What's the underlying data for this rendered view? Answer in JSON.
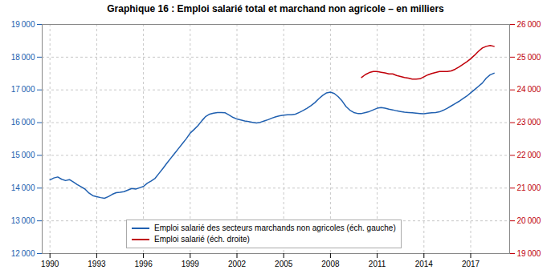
{
  "chart_data": {
    "type": "line",
    "title": "Graphique 16 : Emploi salarié total et marchand non agricole – en milliers",
    "xlim": [
      1989.5,
      2019.5
    ],
    "xticks": [
      1990,
      1993,
      1996,
      1999,
      2002,
      2005,
      2008,
      2011,
      2014,
      2017
    ],
    "ylim": [
      12000,
      19000
    ],
    "yticks": [
      {
        "value": 12000,
        "label": "12 000"
      },
      {
        "value": 13000,
        "label": "13 000"
      },
      {
        "value": 14000,
        "label": "14 000"
      },
      {
        "value": 15000,
        "label": "15 000"
      },
      {
        "value": 16000,
        "label": "16 000"
      },
      {
        "value": 17000,
        "label": "17 000"
      },
      {
        "value": 18000,
        "label": "18 000"
      },
      {
        "value": 19000,
        "label": "19 000"
      }
    ],
    "y2lim": [
      19000,
      26000
    ],
    "y2ticks": [
      {
        "value": 19000,
        "label": "19 000"
      },
      {
        "value": 20000,
        "label": "20 000"
      },
      {
        "value": 21000,
        "label": "21 000"
      },
      {
        "value": 22000,
        "label": "22 000"
      },
      {
        "value": 23000,
        "label": "23 000"
      },
      {
        "value": 24000,
        "label": "24 000"
      },
      {
        "value": 25000,
        "label": "25 000"
      },
      {
        "value": 26000,
        "label": "26 000"
      }
    ],
    "grid": true,
    "legend": "lower left",
    "series": [
      {
        "name": "Emploi salarié des secteurs marchands non agricoles (éch. gauche)",
        "color": "#2060b0",
        "axis": "y",
        "x": [
          1990.0,
          1990.25,
          1990.5,
          1990.75,
          1991.0,
          1991.25,
          1991.5,
          1991.75,
          1992.0,
          1992.25,
          1992.5,
          1992.75,
          1993.0,
          1993.25,
          1993.5,
          1993.75,
          1994.0,
          1994.25,
          1994.5,
          1994.75,
          1995.0,
          1995.25,
          1995.5,
          1995.75,
          1996.0,
          1996.25,
          1996.5,
          1996.75,
          1997.0,
          1997.25,
          1997.5,
          1997.75,
          1998.0,
          1998.25,
          1998.5,
          1998.75,
          1999.0,
          1999.25,
          1999.5,
          1999.75,
          2000.0,
          2000.25,
          2000.5,
          2000.75,
          2001.0,
          2001.25,
          2001.5,
          2001.75,
          2002.0,
          2002.25,
          2002.5,
          2002.75,
          2003.0,
          2003.25,
          2003.5,
          2003.75,
          2004.0,
          2004.25,
          2004.5,
          2004.75,
          2005.0,
          2005.25,
          2005.5,
          2005.75,
          2006.0,
          2006.25,
          2006.5,
          2006.75,
          2007.0,
          2007.25,
          2007.5,
          2007.75,
          2008.0,
          2008.25,
          2008.5,
          2008.75,
          2009.0,
          2009.25,
          2009.5,
          2009.75,
          2010.0,
          2010.25,
          2010.5,
          2010.75,
          2011.0,
          2011.25,
          2011.5,
          2011.75,
          2012.0,
          2012.25,
          2012.5,
          2012.75,
          2013.0,
          2013.25,
          2013.5,
          2013.75,
          2014.0,
          2014.25,
          2014.5,
          2014.75,
          2015.0,
          2015.25,
          2015.5,
          2015.75,
          2016.0,
          2016.25,
          2016.5,
          2016.75,
          2017.0,
          2017.25,
          2017.5,
          2017.75,
          2018.0,
          2018.25,
          2018.5
        ],
        "values": [
          14250,
          14310,
          14340,
          14270,
          14230,
          14260,
          14190,
          14110,
          14040,
          13970,
          13850,
          13770,
          13740,
          13710,
          13690,
          13740,
          13810,
          13860,
          13870,
          13890,
          13940,
          13990,
          13970,
          14010,
          14050,
          14150,
          14220,
          14300,
          14450,
          14600,
          14760,
          14910,
          15060,
          15210,
          15360,
          15510,
          15680,
          15790,
          15910,
          16060,
          16190,
          16260,
          16290,
          16310,
          16310,
          16300,
          16230,
          16160,
          16110,
          16080,
          16050,
          16030,
          16010,
          15990,
          16010,
          16050,
          16090,
          16140,
          16180,
          16210,
          16230,
          16240,
          16240,
          16260,
          16310,
          16370,
          16440,
          16520,
          16610,
          16730,
          16830,
          16910,
          16930,
          16890,
          16790,
          16660,
          16490,
          16380,
          16310,
          16280,
          16280,
          16310,
          16340,
          16390,
          16440,
          16460,
          16440,
          16410,
          16390,
          16360,
          16340,
          16320,
          16310,
          16300,
          16290,
          16280,
          16270,
          16290,
          16300,
          16310,
          16330,
          16380,
          16440,
          16510,
          16580,
          16650,
          16730,
          16810,
          16910,
          17010,
          17110,
          17210,
          17360,
          17460,
          17510
        ]
      },
      {
        "name": "Emploi salarié (éch. droite)",
        "color": "#c0000a",
        "axis": "y2",
        "x": [
          2010.0,
          2010.25,
          2010.5,
          2010.75,
          2011.0,
          2011.25,
          2011.5,
          2011.75,
          2012.0,
          2012.25,
          2012.5,
          2012.75,
          2013.0,
          2013.25,
          2013.5,
          2013.75,
          2014.0,
          2014.25,
          2014.5,
          2014.75,
          2015.0,
          2015.25,
          2015.5,
          2015.75,
          2016.0,
          2016.25,
          2016.5,
          2016.75,
          2017.0,
          2017.25,
          2017.5,
          2017.75,
          2018.0,
          2018.25,
          2018.5
        ],
        "values": [
          24380,
          24470,
          24530,
          24560,
          24560,
          24540,
          24520,
          24490,
          24490,
          24440,
          24410,
          24380,
          24360,
          24330,
          24330,
          24340,
          24400,
          24460,
          24500,
          24530,
          24560,
          24560,
          24560,
          24580,
          24630,
          24700,
          24780,
          24860,
          24950,
          25060,
          25180,
          25280,
          25330,
          25360,
          25330
        ]
      }
    ]
  }
}
